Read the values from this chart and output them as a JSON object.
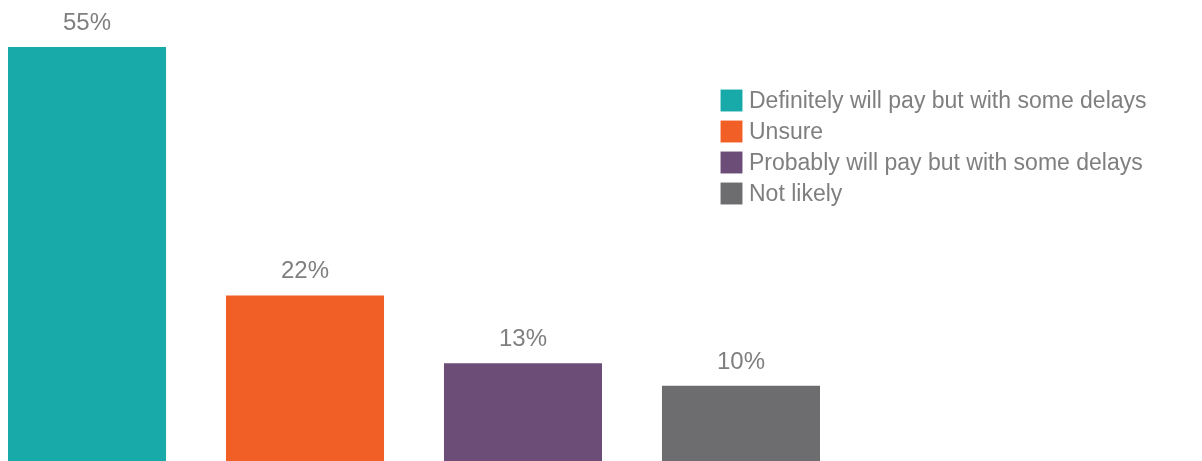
{
  "chart_data": {
    "type": "bar",
    "categories": [
      null,
      null,
      null,
      null
    ],
    "legend": "top right",
    "stacked": true,
    "series": [
      {
        "name": "Definitely will pay but with some delays",
        "color": "#17aaa8",
        "values": [
          55,
          null,
          null,
          null
        ],
        "value_labels": [
          "55%",
          null,
          null,
          null
        ]
      },
      {
        "name": "Unsure",
        "color": "#f15f26",
        "values": [
          null,
          22,
          null,
          null
        ],
        "value_labels": [
          null,
          "22%",
          null,
          null
        ]
      },
      {
        "name": "Probably will pay but with some delays",
        "color": "#6c4d77",
        "values": [
          null,
          null,
          13,
          null
        ],
        "value_labels": [
          null,
          null,
          "13%",
          null
        ]
      },
      {
        "name": "Not likely",
        "color": "#6d6d6f",
        "values": [
          null,
          null,
          null,
          10
        ],
        "value_labels": [
          null,
          null,
          null,
          "10%"
        ]
      }
    ]
  }
}
